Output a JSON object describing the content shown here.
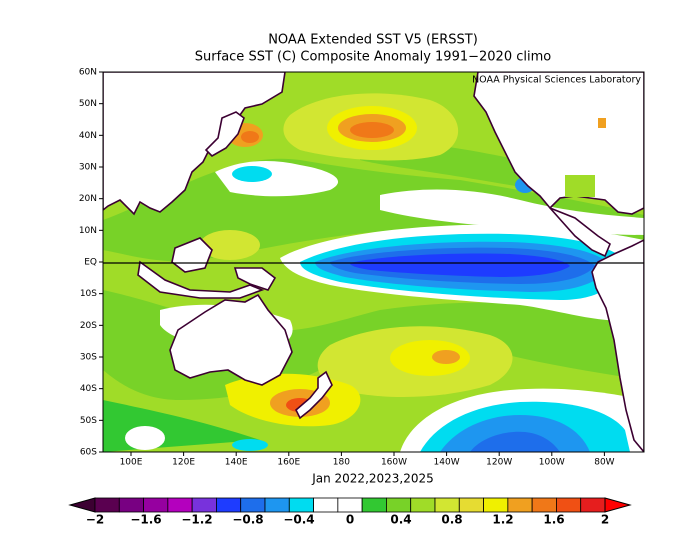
{
  "title": "NOAA Extended SST V5 (ERSST)",
  "subtitle": "Surface SST (C) Composite Anomaly 1991−2020 climo",
  "credit": "NOAA Physical Sciences Laboratory",
  "x_label": "Jan 2022,2023,2025",
  "lat_labels": [
    "60N",
    "50N",
    "40N",
    "30N",
    "20N",
    "10N",
    "EQ",
    "10S",
    "20S",
    "30S",
    "40S",
    "50S",
    "60S"
  ],
  "lon_labels": [
    "100E",
    "120E",
    "140E",
    "160E",
    "180",
    "160W",
    "140W",
    "120W",
    "100W",
    "80W"
  ],
  "colorbar": {
    "colors": [
      "#3c0032",
      "#5a0050",
      "#780082",
      "#9600a0",
      "#b400be",
      "#7832dc",
      "#1e3cff",
      "#1e6eeb",
      "#1e96f0",
      "#00dcf0",
      "#ffffff",
      "#ffffff",
      "#32c832",
      "#78d228",
      "#a0dc28",
      "#d2e632",
      "#e6dc32",
      "#f0f000",
      "#f0a020",
      "#f07818",
      "#f05014",
      "#e61e1e",
      "#ff0000"
    ],
    "labels": [
      "−2",
      "−1.6",
      "−1.2",
      "−0.8",
      "−0.4",
      "0",
      "0.4",
      "0.8",
      "1.2",
      "1.6",
      "2"
    ]
  }
}
